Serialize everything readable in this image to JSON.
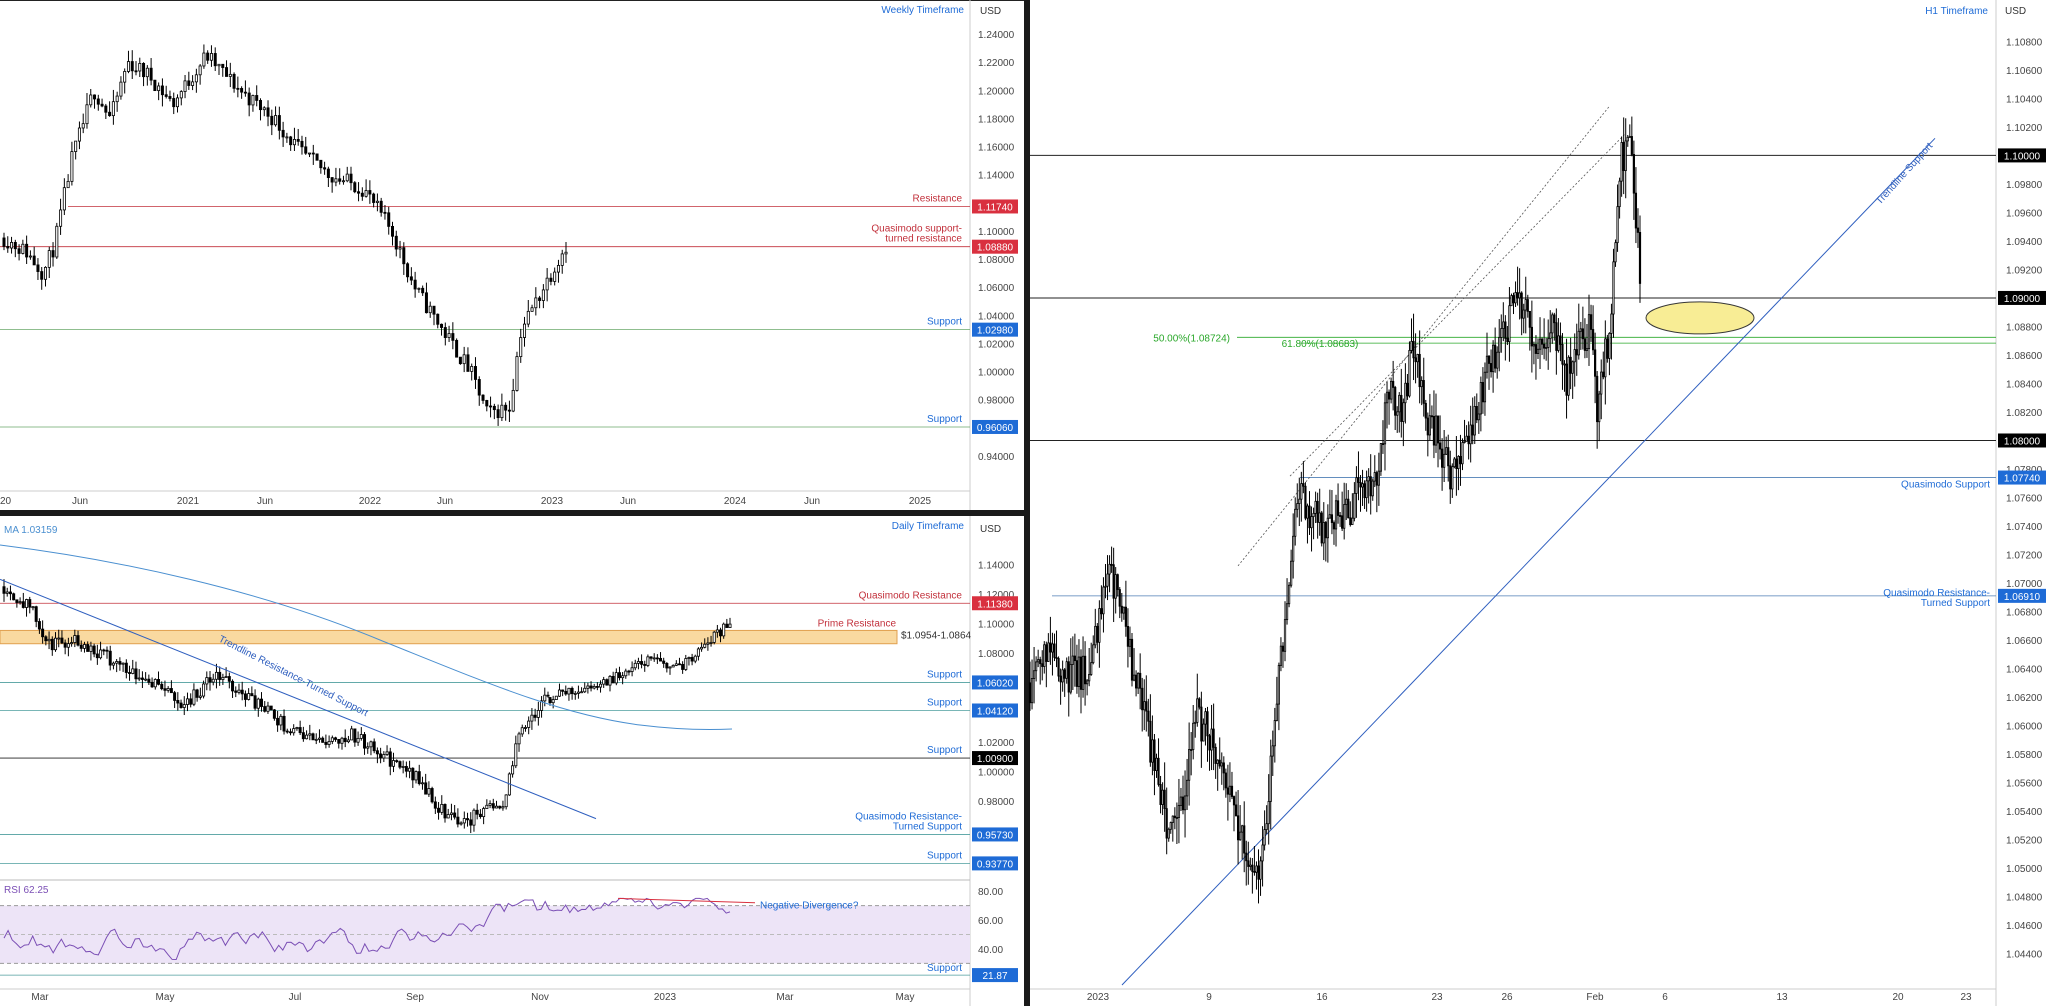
{
  "colors": {
    "up": "#ffffff",
    "down": "#000000",
    "wick": "#000000",
    "resistance": "#c2303b",
    "support_line": "#6aa86a",
    "blue_label": "#1e6bd6",
    "red_label": "#d9303f",
    "black_label": "#000000",
    "ma": "#4a8fd0",
    "trend": "#2f5fbf",
    "fib": "#2aa82a",
    "zone_fill": "#f9d9a0",
    "zone_stroke": "#e0a050",
    "ellipse": "#f8ec8a",
    "rsi_band": "#ede4f7",
    "rsi_line": "#7b4fb5",
    "divergence": "#d9303f"
  },
  "weekly": {
    "title": "Weekly Timeframe",
    "currency": "USD",
    "ylim": [
      0.93,
      1.25
    ],
    "y_ticks": [
      "1.24000",
      "1.22000",
      "1.20000",
      "1.18000",
      "1.16000",
      "1.14000",
      "1.10000",
      "1.08000",
      "1.06000",
      "1.04000",
      "1.02000",
      "1.00000",
      "0.98000",
      "0.94000"
    ],
    "x_ticks": [
      "2020",
      "Jun",
      "2021",
      "Jun",
      "2022",
      "Jun",
      "2023",
      "Jun",
      "2024",
      "Jun",
      "2025"
    ],
    "levels": [
      {
        "value": 1.1174,
        "badge": "1.11740",
        "kind": "red",
        "label": "Resistance"
      },
      {
        "value": 1.0888,
        "badge": "1.08880",
        "kind": "red",
        "label": "Quasimodo support-\nturned resistance"
      },
      {
        "value": 1.0298,
        "badge": "1.02980",
        "kind": "blue",
        "label": "Support"
      },
      {
        "value": 0.9606,
        "badge": "0.96060",
        "kind": "blue",
        "label": "Support"
      }
    ]
  },
  "daily": {
    "title": "Daily Timeframe",
    "currency": "USD",
    "ma_label": "MA 1.03159",
    "ylim": [
      0.94,
      1.16
    ],
    "y_ticks": [
      "1.14000",
      "1.12000",
      "1.10000",
      "1.08000",
      "1.02000",
      "1.00000",
      "0.98000"
    ],
    "x_ticks": [
      "Mar",
      "May",
      "Jul",
      "Sep",
      "Nov",
      "2023",
      "Mar",
      "May"
    ],
    "zone_label": "1.0954-1.0864",
    "zone": [
      1.0864,
      1.0954
    ],
    "trendline_label": "Trendline Resistance-Turned Support",
    "levels": [
      {
        "value": 1.1138,
        "badge": "1.11380",
        "kind": "red",
        "label": "Quasimodo Resistance"
      },
      {
        "value": 1.0602,
        "badge": "1.06020",
        "kind": "blue",
        "label": "Support"
      },
      {
        "value": 1.0412,
        "badge": "1.04120",
        "kind": "blue",
        "label": "Support"
      },
      {
        "value": 1.009,
        "badge": "1.00900",
        "kind": "black",
        "label": "Support"
      },
      {
        "value": 0.9573,
        "badge": "0.95730",
        "kind": "blue",
        "label": "Quasimodo Resistance-\nTurned Support"
      },
      {
        "value": 0.9377,
        "badge": "0.93770",
        "kind": "blue",
        "label": "Support"
      }
    ],
    "prime_label": "Prime Resistance"
  },
  "rsi": {
    "label": "RSI 62.25",
    "ylim": [
      15,
      85
    ],
    "y_ticks": [
      "80.00",
      "60.00",
      "40.00"
    ],
    "support_badge": "21.87",
    "support_label": "Support",
    "divergence_label": "Negative Divergence?"
  },
  "h1": {
    "title": "H1 Timeframe",
    "currency": "USD",
    "ylim": [
      1.0425,
      1.1095
    ],
    "y_ticks": [
      "1.10800",
      "1.10600",
      "1.10400",
      "1.10200",
      "1.09800",
      "1.09600",
      "1.09400",
      "1.09200",
      "1.08800",
      "1.08600",
      "1.08400",
      "1.08200",
      "1.07800",
      "1.07600",
      "1.07400",
      "1.07200",
      "1.07000",
      "1.06800",
      "1.06600",
      "1.06400",
      "1.06200",
      "1.06000",
      "1.05800",
      "1.05600",
      "1.05400",
      "1.05200",
      "1.05000",
      "1.04800",
      "1.04600",
      "1.04400"
    ],
    "x_ticks": [
      "2023",
      "9",
      "16",
      "23",
      "26",
      "Feb",
      "6",
      "13",
      "20",
      "23"
    ],
    "fib_50": "50.00%(1.08724)",
    "fib_618": "61.80%(1.08683)",
    "trendline_label": "Trendline Support",
    "levels": [
      {
        "value": 1.1,
        "badge": "1.10000",
        "kind": "black",
        "label": ""
      },
      {
        "value": 1.09,
        "badge": "1.09000",
        "kind": "black",
        "label": ""
      },
      {
        "value": 1.08,
        "badge": "1.08000",
        "kind": "black",
        "label": ""
      },
      {
        "value": 1.0774,
        "badge": "1.07740",
        "kind": "blue",
        "label": "Quasimodo Support"
      },
      {
        "value": 1.0691,
        "badge": "1.06910",
        "kind": "blue",
        "label": "Quasimodo Resistance-\nTurned Support"
      }
    ]
  }
}
